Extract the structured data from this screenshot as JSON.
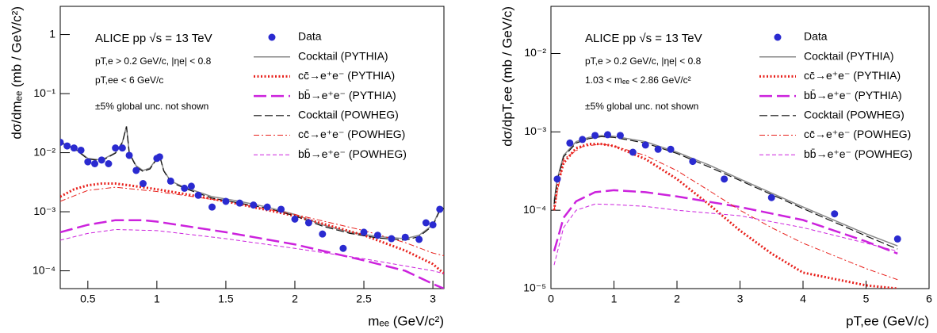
{
  "chart_data": [
    {
      "type": "line",
      "log_y": true,
      "legend": "top-right",
      "x_label": "mₑₑ (GeV/c²)",
      "y_label": "dσ/dmₑₑ (mb / GeV/c²)",
      "annotations": [
        "ALICE pp √s = 13 TeV",
        "pT,e > 0.2 GeV/c, |ηe| < 0.8",
        "pT,ee < 6 GeV/c",
        "±5% global unc. not shown"
      ],
      "xlim": [
        0.3,
        3.08
      ],
      "ylim": [
        5e-05,
        3
      ],
      "xticks": [
        0.5,
        1,
        1.5,
        2,
        2.5,
        3
      ],
      "yticks": [
        {
          "value": 0.0001,
          "label": "10⁻⁴"
        },
        {
          "value": 0.001,
          "label": "10⁻³"
        },
        {
          "value": 0.01,
          "label": "10⁻²"
        },
        {
          "value": 0.1,
          "label": "10⁻¹"
        },
        1
      ],
      "series": [
        {
          "name": "Data",
          "color": "#2a2ad0",
          "style": "marker",
          "x": [
            0.3,
            0.35,
            0.4,
            0.45,
            0.5,
            0.55,
            0.6,
            0.65,
            0.7,
            0.75,
            0.8,
            0.85,
            0.9,
            1.0,
            1.02,
            1.1,
            1.2,
            1.25,
            1.3,
            1.4,
            1.5,
            1.6,
            1.7,
            1.8,
            1.9,
            2.0,
            2.1,
            2.2,
            2.35,
            2.5,
            2.6,
            2.7,
            2.8,
            2.9,
            2.95,
            3.0,
            3.05
          ],
          "values": [
            0.015,
            0.013,
            0.012,
            0.011,
            0.007,
            0.0065,
            0.0075,
            0.0065,
            0.012,
            0.012,
            0.009,
            0.005,
            0.003,
            0.008,
            0.0085,
            0.0033,
            0.0025,
            0.0027,
            0.0019,
            0.0012,
            0.0015,
            0.0014,
            0.0013,
            0.0012,
            0.0011,
            0.00075,
            0.00065,
            0.00042,
            0.00024,
            0.00045,
            0.0004,
            0.00035,
            0.00037,
            0.00034,
            0.00065,
            0.0006,
            0.0011
          ]
        },
        {
          "name": "Cocktail (PYTHIA)",
          "color": "#888888",
          "style": "solid",
          "x": [
            0.3,
            0.4,
            0.5,
            0.6,
            0.7,
            0.75,
            0.78,
            0.8,
            0.85,
            0.9,
            0.95,
            1.0,
            1.02,
            1.05,
            1.1,
            1.2,
            1.4,
            1.6,
            1.8,
            2.0,
            2.2,
            2.4,
            2.6,
            2.8,
            2.9,
            3.0,
            3.05,
            3.08
          ],
          "values": [
            0.015,
            0.012,
            0.008,
            0.0075,
            0.01,
            0.015,
            0.028,
            0.01,
            0.006,
            0.005,
            0.0055,
            0.008,
            0.009,
            0.005,
            0.0033,
            0.0026,
            0.0018,
            0.0015,
            0.0012,
            0.0009,
            0.0006,
            0.00045,
            0.00038,
            0.00035,
            0.0004,
            0.0006,
            0.0011,
            0.0012
          ]
        },
        {
          "name": "cc̄→e⁺e⁻ (PYTHIA)",
          "color": "#e8201b",
          "style": "dotted",
          "x": [
            0.3,
            0.4,
            0.5,
            0.6,
            0.7,
            0.8,
            1.0,
            1.2,
            1.5,
            2.0,
            2.5,
            2.8,
            3.0,
            3.08
          ],
          "values": [
            0.0018,
            0.0024,
            0.0028,
            0.003,
            0.003,
            0.0028,
            0.0024,
            0.002,
            0.0015,
            0.00085,
            0.0004,
            0.00022,
            0.00013,
            9e-05
          ]
        },
        {
          "name": "bb̄→e⁺e⁻ (PYTHIA)",
          "color": "#cc22dd",
          "style": "long-dash",
          "x": [
            0.3,
            0.5,
            0.7,
            0.9,
            1.0,
            1.5,
            2.0,
            2.5,
            2.8,
            3.0,
            3.08
          ],
          "values": [
            0.00045,
            0.0006,
            0.00072,
            0.00072,
            0.00068,
            0.00045,
            0.00028,
            0.00015,
            0.0001,
            6e-05,
            5e-05
          ]
        },
        {
          "name": "Cocktail (POWHEG)",
          "color": "#111111",
          "style": "dashed-black",
          "x": [
            0.3,
            0.4,
            0.5,
            0.6,
            0.7,
            0.75,
            0.78,
            0.8,
            0.85,
            0.9,
            0.95,
            1.0,
            1.02,
            1.05,
            1.1,
            1.2,
            1.4,
            1.6,
            1.8,
            2.0,
            2.2,
            2.4,
            2.6,
            2.8,
            2.9,
            3.0,
            3.05,
            3.08
          ],
          "values": [
            0.0148,
            0.0118,
            0.0078,
            0.0073,
            0.0098,
            0.0148,
            0.0275,
            0.0098,
            0.0058,
            0.0048,
            0.0053,
            0.0078,
            0.0088,
            0.0049,
            0.0032,
            0.0025,
            0.0017,
            0.0014,
            0.00115,
            0.00085,
            0.00057,
            0.00043,
            0.00036,
            0.00033,
            0.00038,
            0.00058,
            0.00105,
            0.00115
          ]
        },
        {
          "name": "cc̄→e⁺e⁻ (POWHEG)",
          "color": "#e8201b",
          "style": "dash-dot",
          "x": [
            0.3,
            0.5,
            0.7,
            1.0,
            1.5,
            2.0,
            2.5,
            2.8,
            3.0,
            3.08
          ],
          "values": [
            0.0015,
            0.0023,
            0.0026,
            0.0022,
            0.0015,
            0.0009,
            0.00048,
            0.0003,
            0.0002,
            0.00018
          ]
        },
        {
          "name": "bb̄→e⁺e⁻ (POWHEG)",
          "color": "#cc22dd",
          "style": "dashed",
          "x": [
            0.3,
            0.5,
            0.7,
            1.0,
            1.5,
            2.0,
            2.5,
            3.0,
            3.08
          ],
          "values": [
            0.00033,
            0.00043,
            0.0005,
            0.00048,
            0.00035,
            0.00024,
            0.00016,
            0.0001,
            9e-05
          ]
        }
      ]
    },
    {
      "type": "line",
      "log_y": true,
      "legend": "top-right",
      "x_label": "pT,ee (GeV/c)",
      "y_label": "dσ/dpT,ee (mb / GeV/c)",
      "annotations": [
        "ALICE pp √s = 13 TeV",
        "pT,e > 0.2 GeV/c, |ηe| < 0.8",
        "1.03 < mₑₑ < 2.86 GeV/c²",
        "±5% global unc. not shown"
      ],
      "xlim": [
        0,
        6
      ],
      "ylim": [
        1e-05,
        0.04
      ],
      "xticks": [
        0,
        1,
        2,
        3,
        4,
        5,
        6
      ],
      "yticks": [
        {
          "value": 1e-05,
          "label": "10⁻⁵"
        },
        {
          "value": 0.0001,
          "label": "10⁻⁴"
        },
        {
          "value": 0.001,
          "label": "10⁻³"
        },
        {
          "value": 0.01,
          "label": "10⁻²"
        }
      ],
      "series": [
        {
          "name": "Data",
          "color": "#2a2ad0",
          "style": "marker",
          "x": [
            0.1,
            0.3,
            0.5,
            0.7,
            0.9,
            1.1,
            1.3,
            1.5,
            1.7,
            1.9,
            2.25,
            2.75,
            3.5,
            4.5,
            5.5
          ],
          "values": [
            0.00025,
            0.00072,
            0.0008,
            0.0009,
            0.00092,
            0.0009,
            0.00055,
            0.00068,
            0.0006,
            0.0006,
            0.00042,
            0.00025,
            0.000145,
            9e-05,
            4.3e-05
          ]
        },
        {
          "name": "Cocktail (PYTHIA)",
          "color": "#888888",
          "style": "solid",
          "x": [
            0.05,
            0.1,
            0.2,
            0.4,
            0.6,
            0.8,
            1.0,
            1.5,
            2,
            2.5,
            3,
            4,
            5,
            5.5
          ],
          "values": [
            0.00013,
            0.00025,
            0.0005,
            0.00075,
            0.00085,
            0.0009,
            0.00088,
            0.00075,
            0.00055,
            0.00038,
            0.00025,
            0.00011,
            5e-05,
            3.5e-05
          ]
        },
        {
          "name": "cc̄→e⁺e⁻ (PYTHIA)",
          "color": "#e8201b",
          "style": "dotted",
          "x": [
            0.05,
            0.1,
            0.2,
            0.4,
            0.6,
            0.8,
            1.0,
            1.5,
            2,
            2.5,
            3,
            3.5,
            4,
            5,
            5.5
          ],
          "values": [
            0.0001,
            0.0002,
            0.0004,
            0.00062,
            0.0007,
            0.0007,
            0.00066,
            0.00045,
            0.00025,
            0.00012,
            5.5e-05,
            2.8e-05,
            1.6e-05,
            1.1e-05,
            1e-05
          ]
        },
        {
          "name": "bb̄→e⁺e⁻ (PYTHIA)",
          "color": "#cc22dd",
          "style": "long-dash",
          "x": [
            0.05,
            0.2,
            0.4,
            0.7,
            1,
            1.5,
            2,
            3,
            4,
            5,
            5.5
          ],
          "values": [
            3e-05,
            8e-05,
            0.00013,
            0.00017,
            0.00018,
            0.00017,
            0.00015,
            0.00011,
            7.5e-05,
            4e-05,
            2.8e-05
          ]
        },
        {
          "name": "Cocktail (POWHEG)",
          "color": "#111111",
          "style": "dashed-black",
          "x": [
            0.05,
            0.1,
            0.2,
            0.4,
            0.6,
            0.8,
            1.0,
            1.5,
            2,
            2.5,
            3,
            4,
            5,
            5.5
          ],
          "values": [
            0.00012,
            0.00024,
            0.00048,
            0.00072,
            0.00082,
            0.00087,
            0.00085,
            0.00072,
            0.00053,
            0.00036,
            0.00024,
            0.000105,
            4.7e-05,
            3.2e-05
          ]
        },
        {
          "name": "cc̄→e⁺e⁻ (POWHEG)",
          "color": "#e8201b",
          "style": "dash-dot",
          "x": [
            0.05,
            0.2,
            0.5,
            0.8,
            1,
            1.5,
            2,
            2.5,
            3,
            3.5,
            4,
            5,
            5.5
          ],
          "values": [
            0.0001,
            0.00045,
            0.00065,
            0.0007,
            0.00066,
            0.0005,
            0.00032,
            0.00018,
            0.0001,
            6e-05,
            3.8e-05,
            1.8e-05,
            1.3e-05
          ]
        },
        {
          "name": "bb̄→e⁺e⁻ (POWHEG)",
          "color": "#cc22dd",
          "style": "dashed",
          "x": [
            0.05,
            0.2,
            0.4,
            0.7,
            1,
            1.5,
            2,
            3,
            4,
            5,
            5.5
          ],
          "values": [
            2e-05,
            6e-05,
            0.0001,
            0.00012,
            0.000118,
            0.000112,
            0.0001,
            8.5e-05,
            6e-05,
            3.8e-05,
            3e-05
          ]
        }
      ]
    }
  ]
}
